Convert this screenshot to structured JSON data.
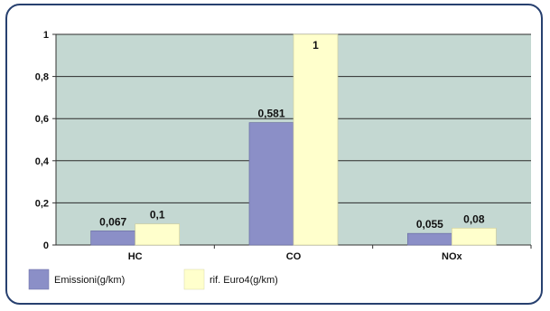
{
  "chart_data": {
    "type": "bar",
    "categories": [
      "HC",
      "CO",
      "NOx"
    ],
    "series": [
      {
        "name": "Emissioni(g/km)",
        "color": "#8b8fc7",
        "values": [
          0.067,
          0.581,
          0.055
        ],
        "labels": [
          "0,067",
          "0,581",
          "0,055"
        ]
      },
      {
        "name": "rif. Euro4(g/km)",
        "color": "#ffffcc",
        "values": [
          0.1,
          1,
          0.08
        ],
        "labels": [
          "0,1",
          "1",
          "0,08"
        ]
      }
    ],
    "ylim": [
      0,
      1
    ],
    "yticks": [
      0,
      0.2,
      0.4,
      0.6,
      0.8,
      1
    ],
    "ytick_labels": [
      "0",
      "0,2",
      "0,4",
      "0,6",
      "0,8",
      "1"
    ],
    "grid": true,
    "plot_background": "#c4d8d2",
    "legend_position": "bottom-left",
    "title": "",
    "xlabel": "",
    "ylabel": ""
  }
}
